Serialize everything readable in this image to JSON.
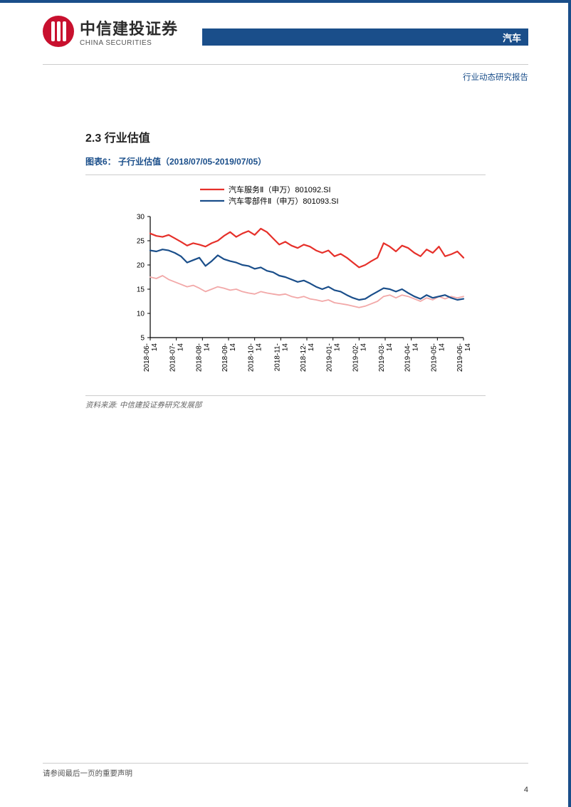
{
  "header": {
    "logo_cn": "中信建投证券",
    "logo_en": "CHINA SECURITIES",
    "category": "汽车",
    "report_type": "行业动态研究报告"
  },
  "section": {
    "number_title": "2.3 行业估值",
    "figure_label": "图表6：  子行业估值（2018/07/05-2019/07/05）",
    "source_label": "资料来源: 中信建投证券研究发展部"
  },
  "chart": {
    "type": "line",
    "background_color": "#ffffff",
    "grid_color": "#f7f7f7",
    "axis_color": "#000000",
    "label_color": "#000000",
    "label_fontsize": 10,
    "legend_fontsize": 11,
    "ylim": [
      5,
      30
    ],
    "ytick_step": 5,
    "yticks": [
      5,
      10,
      15,
      20,
      25,
      30
    ],
    "xticks": [
      "2018-06-14",
      "2018-07-14",
      "2018-08-14",
      "2018-09-14",
      "2018-10-14",
      "2018-11-14",
      "2018-12-14",
      "2019-01-14",
      "2019-02-14",
      "2019-03-14",
      "2019-04-14",
      "2019-05-14",
      "2019-06-14"
    ],
    "legend": [
      {
        "label": "汽车服务Ⅱ（申万）801092.SI",
        "color": "#e6302a",
        "line_width": 2.2
      },
      {
        "label": "汽车零部件Ⅱ（申万）801093.SI",
        "color": "#1a4e8a",
        "line_width": 2.2
      }
    ],
    "series": [
      {
        "name": "汽车服务Ⅱ",
        "color": "#e6302a",
        "line_width": 2.2,
        "values": [
          26.5,
          26.0,
          25.8,
          26.2,
          25.5,
          24.8,
          24.0,
          24.5,
          24.2,
          23.8,
          24.5,
          25.0,
          26.0,
          26.8,
          25.8,
          26.5,
          27.0,
          26.2,
          27.5,
          26.8,
          25.5,
          24.2,
          24.8,
          24.0,
          23.5,
          24.2,
          23.8,
          23.0,
          22.5,
          23.0,
          21.8,
          22.3,
          21.5,
          20.5,
          19.5,
          20.0,
          20.8,
          21.5,
          24.5,
          23.8,
          22.8,
          24.0,
          23.5,
          22.5,
          21.8,
          23.2,
          22.5,
          23.8,
          21.8,
          22.2,
          22.8,
          21.5
        ]
      },
      {
        "name": "汽车零部件Ⅱ",
        "color": "#1a4e8a",
        "line_width": 2.2,
        "values": [
          23.0,
          22.8,
          23.2,
          23.0,
          22.5,
          21.8,
          20.5,
          21.0,
          21.5,
          19.8,
          20.8,
          22.0,
          21.2,
          20.8,
          20.5,
          20.0,
          19.8,
          19.2,
          19.5,
          18.8,
          18.5,
          17.8,
          17.5,
          17.0,
          16.5,
          16.8,
          16.2,
          15.5,
          15.0,
          15.5,
          14.8,
          14.5,
          13.8,
          13.2,
          12.8,
          13.0,
          13.8,
          14.5,
          15.2,
          15.0,
          14.5,
          15.0,
          14.2,
          13.5,
          13.0,
          13.8,
          13.2,
          13.5,
          13.8,
          13.2,
          12.8,
          13.0
        ]
      },
      {
        "name": "background_series_a",
        "color": "#f2a8a8",
        "line_width": 1.8,
        "values": [
          17.5,
          17.2,
          17.8,
          17.0,
          16.5,
          16.0,
          15.5,
          15.8,
          15.2,
          14.5,
          15.0,
          15.5,
          15.2,
          14.8,
          15.0,
          14.5,
          14.2,
          14.0,
          14.5,
          14.2,
          14.0,
          13.8,
          14.0,
          13.5,
          13.2,
          13.5,
          13.0,
          12.8,
          12.5,
          12.8,
          12.2,
          12.0,
          11.8,
          11.5,
          11.2,
          11.5,
          12.0,
          12.5,
          13.5,
          13.8,
          13.2,
          13.8,
          13.5,
          13.0,
          12.5,
          13.2,
          12.8,
          13.5,
          13.0,
          13.5,
          13.2,
          13.5
        ]
      }
    ]
  },
  "footer": {
    "disclaimer": "请参阅最后一页的重要声明",
    "page": "4"
  }
}
